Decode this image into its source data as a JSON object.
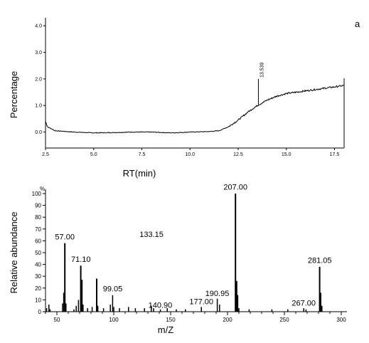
{
  "panel_label": "a",
  "chart_data": [
    {
      "type": "line",
      "xlabel": "RT(min)",
      "ylabel": "Percentage",
      "xlim": [
        2.5,
        18.0
      ],
      "ylim": [
        -0.6,
        4.3
      ],
      "x_ticks": [
        "2.5",
        "5.0",
        "7.5",
        "10.0",
        "12.5",
        "15.0",
        "17.5"
      ],
      "y_ticks": [
        "0.0",
        "1.0",
        "2.0",
        "3.0",
        "4.0"
      ],
      "series": [
        {
          "x": [
            2.5,
            2.6,
            3.0,
            4.0,
            5.0,
            6.0,
            7.0,
            8.0,
            9.0,
            10.0,
            11.0,
            11.5,
            12.0,
            12.5,
            13.0,
            13.5,
            14.0,
            14.5,
            15.0,
            15.5,
            16.0,
            16.5,
            17.0,
            17.5,
            18.0
          ],
          "y": [
            0.4,
            0.2,
            0.05,
            0.0,
            -0.03,
            -0.02,
            0.0,
            0.0,
            -0.03,
            0.0,
            0.02,
            0.05,
            0.2,
            0.45,
            0.75,
            1.0,
            1.2,
            1.35,
            1.45,
            1.5,
            1.55,
            1.6,
            1.65,
            1.7,
            1.75
          ]
        }
      ],
      "peaks": [
        {
          "x": 13.55,
          "y": 1.6,
          "label": "13.539"
        }
      ]
    },
    {
      "type": "bar",
      "xlabel": "m/Z",
      "ylabel": "Relative abundance",
      "y_unit_label": "%",
      "xlim": [
        40,
        305
      ],
      "ylim": [
        0,
        100
      ],
      "x_ticks": [
        "50",
        "100",
        "150",
        "200",
        "250",
        "300"
      ],
      "y_ticks": [
        "0",
        "10",
        "20",
        "30",
        "40",
        "50",
        "60",
        "70",
        "80",
        "90",
        "100"
      ],
      "peaks": [
        {
          "mz": 41,
          "intensity": 3
        },
        {
          "mz": 43,
          "intensity": 6
        },
        {
          "mz": 44,
          "intensity": 2
        },
        {
          "mz": 55,
          "intensity": 7
        },
        {
          "mz": 56,
          "intensity": 16
        },
        {
          "mz": 57,
          "intensity": 58
        },
        {
          "mz": 58,
          "intensity": 7
        },
        {
          "mz": 65,
          "intensity": 2
        },
        {
          "mz": 67,
          "intensity": 5
        },
        {
          "mz": 69,
          "intensity": 10
        },
        {
          "mz": 71,
          "intensity": 39
        },
        {
          "mz": 72,
          "intensity": 27
        },
        {
          "mz": 73,
          "intensity": 6
        },
        {
          "mz": 77,
          "intensity": 3
        },
        {
          "mz": 81,
          "intensity": 4
        },
        {
          "mz": 85,
          "intensity": 28
        },
        {
          "mz": 86,
          "intensity": 5
        },
        {
          "mz": 91,
          "intensity": 3
        },
        {
          "mz": 97,
          "intensity": 6
        },
        {
          "mz": 99,
          "intensity": 14
        },
        {
          "mz": 100,
          "intensity": 4
        },
        {
          "mz": 105,
          "intensity": 3
        },
        {
          "mz": 113,
          "intensity": 4
        },
        {
          "mz": 119,
          "intensity": 3
        },
        {
          "mz": 127,
          "intensity": 3
        },
        {
          "mz": 133,
          "intensity": 5
        },
        {
          "mz": 135,
          "intensity": 3
        },
        {
          "mz": 141,
          "intensity": 2
        },
        {
          "mz": 147,
          "intensity": 3
        },
        {
          "mz": 155,
          "intensity": 2
        },
        {
          "mz": 163,
          "intensity": 2
        },
        {
          "mz": 177,
          "intensity": 4
        },
        {
          "mz": 191,
          "intensity": 11
        },
        {
          "mz": 193,
          "intensity": 6
        },
        {
          "mz": 207,
          "intensity": 100
        },
        {
          "mz": 208,
          "intensity": 26
        },
        {
          "mz": 209,
          "intensity": 14
        },
        {
          "mz": 210,
          "intensity": 3
        },
        {
          "mz": 219,
          "intensity": 2
        },
        {
          "mz": 239,
          "intensity": 2
        },
        {
          "mz": 253,
          "intensity": 2
        },
        {
          "mz": 267,
          "intensity": 3
        },
        {
          "mz": 269,
          "intensity": 2
        },
        {
          "mz": 281,
          "intensity": 38
        },
        {
          "mz": 282,
          "intensity": 16
        },
        {
          "mz": 283,
          "intensity": 5
        }
      ],
      "annotations": [
        {
          "mz": 57.0,
          "label": "57.00",
          "y": 60
        },
        {
          "mz": 71.1,
          "label": "71.10",
          "y": 41
        },
        {
          "mz": 99.05,
          "label": "99.05",
          "y": 16
        },
        {
          "mz": 133.15,
          "label": "133.15",
          "y": 62
        },
        {
          "mz": 140.9,
          "label": "140.90",
          "y": 2
        },
        {
          "mz": 177.0,
          "label": "177.00",
          "y": 5
        },
        {
          "mz": 190.95,
          "label": "190.95",
          "y": 12
        },
        {
          "mz": 207.0,
          "label": "207.00",
          "y": 102
        },
        {
          "mz": 267.0,
          "label": "267.00",
          "y": 4
        },
        {
          "mz": 281.05,
          "label": "281.05",
          "y": 40
        }
      ]
    }
  ]
}
